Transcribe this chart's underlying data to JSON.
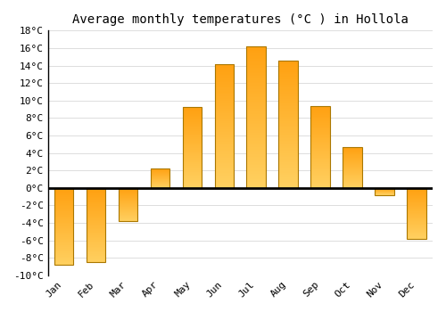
{
  "title": "Average monthly temperatures (°C ) in Hollola",
  "months": [
    "Jan",
    "Feb",
    "Mar",
    "Apr",
    "May",
    "Jun",
    "Jul",
    "Aug",
    "Sep",
    "Oct",
    "Nov",
    "Dec"
  ],
  "values": [
    -8.8,
    -8.5,
    -3.8,
    2.2,
    9.3,
    14.2,
    16.2,
    14.6,
    9.4,
    4.7,
    -0.8,
    -5.8
  ],
  "bar_color_top": "#FFA010",
  "bar_color_bottom": "#FFD060",
  "bar_edge_color": "#AA7700",
  "ylim": [
    -10,
    18
  ],
  "yticks": [
    -10,
    -8,
    -6,
    -4,
    -2,
    0,
    2,
    4,
    6,
    8,
    10,
    12,
    14,
    16,
    18
  ],
  "background_color": "#FFFFFF",
  "grid_color": "#DDDDDD",
  "zero_line_color": "#000000",
  "title_fontsize": 10,
  "tick_fontsize": 8,
  "font_family": "monospace"
}
